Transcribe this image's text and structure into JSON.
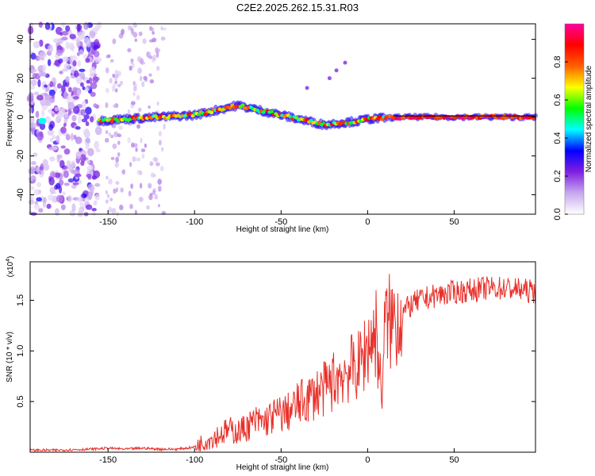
{
  "title": "C2E2.2025.262.15.31.R03",
  "chart_data": [
    {
      "type": "heatmap",
      "title": "C2E2.2025.262.15.31.R03",
      "xlabel": "Height of straight line (km)",
      "ylabel": "Frequency (Hz)",
      "xlim": [
        -195,
        97
      ],
      "ylim": [
        -50,
        48
      ],
      "xticks": [
        -150,
        -100,
        -50,
        0,
        50
      ],
      "yticks": [
        -40,
        -20,
        0,
        20,
        40
      ],
      "grid": false,
      "colorbar": {
        "label": "Normalized spectral amplitude",
        "range": [
          0,
          1
        ],
        "ticks": [
          0.0,
          0.2,
          0.4,
          0.6,
          0.8
        ],
        "colormap": [
          "#ffffff",
          "#c8a8ee",
          "#8020e0",
          "#0000ff",
          "#00ffff",
          "#00ff00",
          "#ffff00",
          "#ff6000",
          "#ff0000",
          "#ff00a0"
        ]
      },
      "ridge": {
        "description": "dominant spectral ridge (frequency vs height)",
        "x": [
          -155,
          -140,
          -120,
          -100,
          -90,
          -80,
          -75,
          -65,
          -50,
          -40,
          -30,
          -25,
          -15,
          -5,
          0,
          10,
          20,
          40,
          60,
          80,
          95
        ],
        "y": [
          -2,
          -1,
          0,
          1,
          3,
          5,
          6,
          4,
          1,
          -1,
          -3,
          -4,
          -3,
          -2,
          -1,
          -0.5,
          0,
          0,
          0,
          0,
          0
        ]
      },
      "scatter_region": {
        "x_from": -195,
        "x_to": -155,
        "description": "broadband noise"
      },
      "annotations": [
        {
          "x": -35,
          "y": 15
        },
        {
          "x": -22,
          "y": 20
        },
        {
          "x": -18,
          "y": 24
        },
        {
          "x": -13,
          "y": 28
        }
      ]
    },
    {
      "type": "line",
      "xlabel": "Height of straight line (km)",
      "ylabel": "SNR (10 * v/v)",
      "yscale_label": "(x10",
      "yscale_exp": "4",
      "yscale_close": ")",
      "xlim": [
        -195,
        97
      ],
      "ylim": [
        0,
        1.88
      ],
      "xticks": [
        -150,
        -100,
        -50,
        0,
        50
      ],
      "yticks": [
        0.5,
        1.0,
        1.5
      ],
      "series": [
        {
          "name": "SNR",
          "color": "#e8302a",
          "x": [
            -195,
            -180,
            -160,
            -150,
            -140,
            -130,
            -120,
            -110,
            -100,
            -95,
            -90,
            -85,
            -80,
            -75,
            -70,
            -65,
            -60,
            -55,
            -50,
            -45,
            -40,
            -35,
            -30,
            -25,
            -20,
            -15,
            -10,
            -5,
            0,
            5,
            8,
            10,
            15,
            20,
            25,
            30,
            40,
            50,
            60,
            70,
            80,
            90,
            97
          ],
          "y": [
            0.02,
            0.02,
            0.03,
            0.04,
            0.03,
            0.04,
            0.03,
            0.03,
            0.05,
            0.1,
            0.14,
            0.18,
            0.22,
            0.2,
            0.25,
            0.3,
            0.3,
            0.35,
            0.38,
            0.4,
            0.48,
            0.52,
            0.58,
            0.62,
            0.7,
            0.78,
            0.82,
            0.85,
            1.05,
            1.2,
            0.55,
            1.25,
            1.3,
            1.38,
            1.45,
            1.5,
            1.55,
            1.58,
            1.6,
            1.62,
            1.62,
            1.6,
            1.58
          ]
        }
      ]
    }
  ]
}
